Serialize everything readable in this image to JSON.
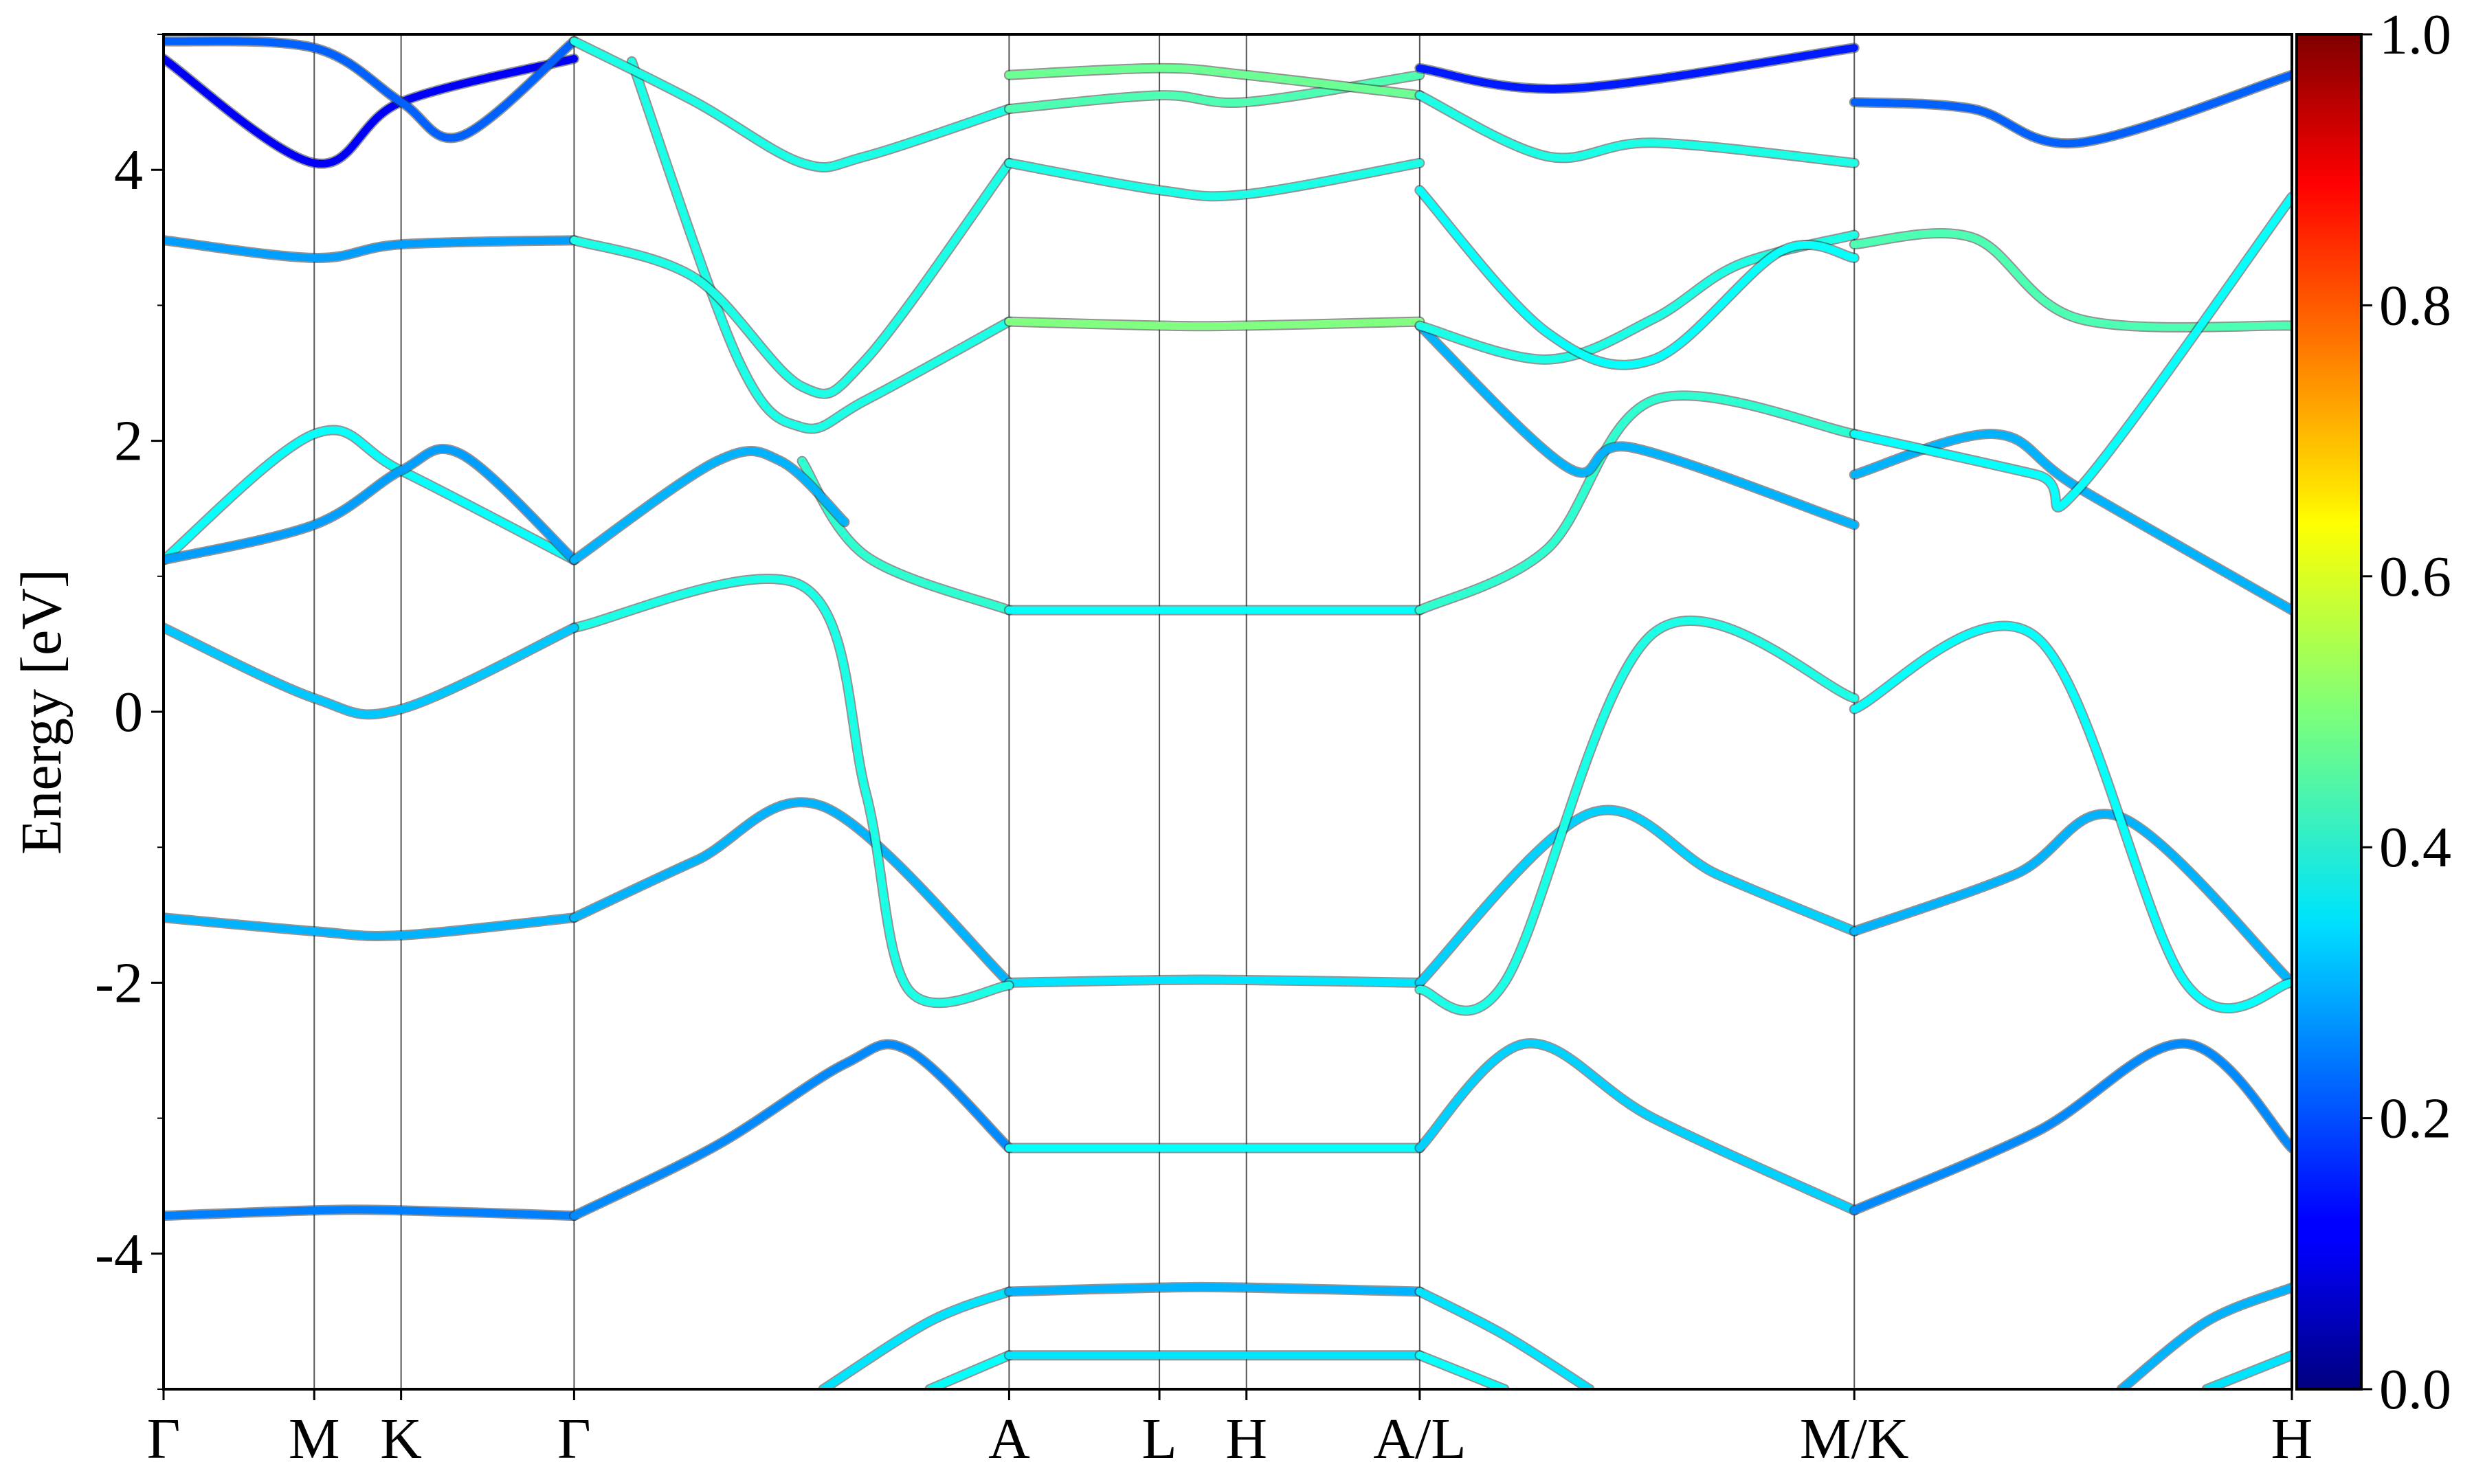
{
  "chart_data": {
    "type": "line",
    "title": "",
    "ylabel": "Energy [eV]",
    "xlabel": "",
    "ylim": [
      -5,
      5
    ],
    "xlim": [
      0,
      1
    ],
    "yticks": [
      -4,
      -2,
      0,
      2,
      4
    ],
    "ytick_labels": [
      "-4",
      "-2",
      "0",
      "2",
      "4"
    ],
    "high_symmetry_points": [
      {
        "label": "Γ",
        "x": 0.0
      },
      {
        "label": "M",
        "x": 0.0708
      },
      {
        "label": "K",
        "x": 0.1116
      },
      {
        "label": "Γ",
        "x": 0.1929
      },
      {
        "label": "A",
        "x": 0.3973
      },
      {
        "label": "L",
        "x": 0.4679
      },
      {
        "label": "H",
        "x": 0.5088
      },
      {
        "label": "A/L",
        "x": 0.5902
      },
      {
        "label": "M/K",
        "x": 0.7944
      },
      {
        "label": "H",
        "x": 1.0
      }
    ],
    "colorbar": {
      "colormap": "jet",
      "range": [
        0.0,
        1.0
      ],
      "ticks": [
        0.0,
        0.2,
        0.4,
        0.6,
        0.8,
        1.0
      ],
      "tick_labels": [
        "0.0",
        "0.2",
        "0.4",
        "0.6",
        "0.8",
        "1.0"
      ]
    },
    "series": [
      {
        "x": [
          0,
          0.0708,
          0.1116,
          0.1929
        ],
        "y": [
          -3.72,
          -3.68,
          -3.68,
          -3.72
        ],
        "c": 0.25
      },
      {
        "x": [
          0.1929,
          0.26,
          0.32,
          0.35,
          0.3973
        ],
        "y": [
          -3.72,
          -3.2,
          -2.6,
          -2.5,
          -3.22
        ],
        "c": 0.26
      },
      {
        "x": [
          0.3973,
          0.4679,
          0.5088,
          0.5902
        ],
        "y": [
          -3.22,
          -3.22,
          -3.22,
          -3.22
        ],
        "c": 0.38
      },
      {
        "x": [
          0.5902,
          0.64,
          0.7,
          0.7944
        ],
        "y": [
          -3.22,
          -2.45,
          -3.0,
          -3.68
        ],
        "c": 0.33
      },
      {
        "x": [
          0.7944,
          0.88,
          0.95,
          1.0
        ],
        "y": [
          -3.68,
          -3.1,
          -2.45,
          -3.22
        ],
        "c": 0.26
      },
      {
        "x": [
          0,
          0.0708,
          0.1116,
          0.1929
        ],
        "y": [
          -1.52,
          -1.62,
          -1.65,
          -1.52
        ],
        "c": 0.3
      },
      {
        "x": [
          0.1929,
          0.25,
          0.31,
          0.3973
        ],
        "y": [
          -1.52,
          -1.1,
          -0.7,
          -2.0
        ],
        "c": 0.3
      },
      {
        "x": [
          0.3973,
          0.4679,
          0.5088,
          0.5902
        ],
        "y": [
          -2.0,
          -1.98,
          -1.98,
          -2.0
        ],
        "c": 0.35
      },
      {
        "x": [
          0.5902,
          0.67,
          0.73,
          0.7944
        ],
        "y": [
          -2.0,
          -0.75,
          -1.2,
          -1.62
        ],
        "c": 0.33
      },
      {
        "x": [
          0.7944,
          0.87,
          0.92,
          1.0
        ],
        "y": [
          -1.62,
          -1.2,
          -0.78,
          -2.0
        ],
        "c": 0.3
      },
      {
        "x": [
          0.1929,
          0.3,
          0.33,
          0.35,
          0.3973
        ],
        "y": [
          0.62,
          0.93,
          -0.6,
          -2.05,
          -2.02
        ],
        "c": 0.4
      },
      {
        "x": [
          0.5902,
          0.63,
          0.7,
          0.7944
        ],
        "y": [
          -2.05,
          -2.0,
          0.58,
          0.1
        ],
        "c": 0.4
      },
      {
        "x": [
          0.7944,
          0.88,
          0.95,
          1.0
        ],
        "y": [
          0.02,
          0.55,
          -2.0,
          -2.0
        ],
        "c": 0.38
      },
      {
        "x": [
          0,
          0.0708,
          0.1116,
          0.1929
        ],
        "y": [
          0.62,
          0.1,
          0.02,
          0.62
        ],
        "c": 0.32
      },
      {
        "x": [
          0.3,
          0.33,
          0.3973
        ],
        "y": [
          1.85,
          1.15,
          0.75
        ],
        "c": 0.42
      },
      {
        "x": [
          0.3973,
          0.4679,
          0.5088,
          0.5902
        ],
        "y": [
          0.75,
          0.75,
          0.75,
          0.75
        ],
        "c": 0.38
      },
      {
        "x": [
          0.5902,
          0.65,
          0.7,
          0.7944
        ],
        "y": [
          0.75,
          1.2,
          2.3,
          2.05
        ],
        "c": 0.42
      },
      {
        "x": [
          0,
          0.0708,
          0.1116,
          0.1929
        ],
        "y": [
          1.12,
          2.05,
          1.78,
          1.12
        ],
        "c": 0.38
      },
      {
        "x": [
          0,
          0.0708,
          0.1116,
          0.14,
          0.1929
        ],
        "y": [
          1.12,
          1.38,
          1.78,
          1.9,
          1.12
        ],
        "c": 0.28
      },
      {
        "x": [
          0.1929,
          0.26,
          0.29,
          0.32
        ],
        "y": [
          1.12,
          1.85,
          1.85,
          1.4
        ],
        "c": 0.3
      },
      {
        "x": [
          0.5902,
          0.66,
          0.69,
          0.7944
        ],
        "y": [
          2.85,
          1.8,
          1.95,
          1.38
        ],
        "c": 0.3
      },
      {
        "x": [
          0.7944,
          0.86,
          0.9,
          1.0
        ],
        "y": [
          1.75,
          2.05,
          1.65,
          0.75
        ],
        "c": 0.3
      },
      {
        "x": [
          0.22,
          0.27,
          0.3,
          0.33,
          0.3973
        ],
        "y": [
          4.8,
          2.6,
          2.1,
          2.3,
          2.88
        ],
        "c": 0.4
      },
      {
        "x": [
          0.3973,
          0.4679,
          0.5088,
          0.5902
        ],
        "y": [
          2.88,
          2.85,
          2.85,
          2.88
        ],
        "c": 0.5
      },
      {
        "x": [
          0.5902,
          0.65,
          0.7,
          0.74,
          0.7944
        ],
        "y": [
          2.85,
          2.6,
          2.9,
          3.3,
          3.52
        ],
        "c": 0.4
      },
      {
        "x": [
          0.7944,
          0.85,
          0.9,
          1.0
        ],
        "y": [
          3.45,
          3.5,
          2.9,
          2.85
        ],
        "c": 0.45
      },
      {
        "x": [
          0,
          0.0708,
          0.1116,
          0.1929
        ],
        "y": [
          3.48,
          3.35,
          3.45,
          3.48
        ],
        "c": 0.28
      },
      {
        "x": [
          0.1929,
          0.25,
          0.3,
          0.33,
          0.3973
        ],
        "y": [
          3.48,
          3.2,
          2.4,
          2.6,
          4.05
        ],
        "c": 0.4
      },
      {
        "x": [
          0.3973,
          0.4679,
          0.5088,
          0.5902
        ],
        "y": [
          4.05,
          3.85,
          3.82,
          4.05
        ],
        "c": 0.4
      },
      {
        "x": [
          0.5902,
          0.65,
          0.7,
          0.76,
          0.7944
        ],
        "y": [
          3.85,
          2.8,
          2.6,
          3.4,
          3.35
        ],
        "c": 0.38
      },
      {
        "x": [
          0.7944,
          0.88,
          0.9,
          1.0
        ],
        "y": [
          2.05,
          1.75,
          1.65,
          3.8
        ],
        "c": 0.38
      },
      {
        "x": [
          0,
          0.0708,
          0.1116,
          0.1929
        ],
        "y": [
          4.82,
          4.05,
          4.5,
          4.82
        ],
        "c": 0.12
      },
      {
        "x": [
          0,
          0.0708,
          0.1116,
          0.14,
          0.1929
        ],
        "y": [
          4.95,
          4.9,
          4.5,
          4.25,
          4.95
        ],
        "c": 0.22
      },
      {
        "x": [
          0.1929,
          0.25,
          0.3,
          0.33,
          0.3973
        ],
        "y": [
          4.95,
          4.5,
          4.05,
          4.1,
          4.45
        ],
        "c": 0.4
      },
      {
        "x": [
          0.3973,
          0.4679,
          0.5088,
          0.5902
        ],
        "y": [
          4.45,
          4.55,
          4.5,
          4.7
        ],
        "c": 0.45
      },
      {
        "x": [
          0.3973,
          0.4679,
          0.5088,
          0.5902
        ],
        "y": [
          4.7,
          4.75,
          4.7,
          4.55
        ],
        "c": 0.48
      },
      {
        "x": [
          0.5902,
          0.65,
          0.7,
          0.7944
        ],
        "y": [
          4.55,
          4.1,
          4.2,
          4.05
        ],
        "c": 0.4
      },
      {
        "x": [
          0.5902,
          0.66,
          0.7944
        ],
        "y": [
          4.75,
          4.6,
          4.9
        ],
        "c": 0.15
      },
      {
        "x": [
          0.7944,
          0.85,
          0.9,
          1.0
        ],
        "y": [
          4.5,
          4.45,
          4.2,
          4.7
        ],
        "c": 0.22
      },
      {
        "x": [
          0.31,
          0.36,
          0.3973
        ],
        "y": [
          -5.0,
          -4.5,
          -4.28
        ],
        "c": 0.35
      },
      {
        "x": [
          0.3973,
          0.4679,
          0.5088,
          0.5902
        ],
        "y": [
          -4.28,
          -4.25,
          -4.25,
          -4.28
        ],
        "c": 0.3
      },
      {
        "x": [
          0.5902,
          0.63,
          0.67
        ],
        "y": [
          -4.28,
          -4.6,
          -5.0
        ],
        "c": 0.35
      },
      {
        "x": [
          0.92,
          0.96,
          1.0
        ],
        "y": [
          -5.0,
          -4.5,
          -4.25
        ],
        "c": 0.3
      },
      {
        "x": [
          0.36,
          0.3973
        ],
        "y": [
          -5.0,
          -4.75
        ],
        "c": 0.38
      },
      {
        "x": [
          0.3973,
          0.4679,
          0.5088,
          0.5902
        ],
        "y": [
          -4.75,
          -4.75,
          -4.75,
          -4.75
        ],
        "c": 0.35
      },
      {
        "x": [
          0.5902,
          0.63
        ],
        "y": [
          -4.75,
          -5.0
        ],
        "c": 0.38
      },
      {
        "x": [
          0.96,
          1.0
        ],
        "y": [
          -5.0,
          -4.75
        ],
        "c": 0.35
      }
    ]
  }
}
